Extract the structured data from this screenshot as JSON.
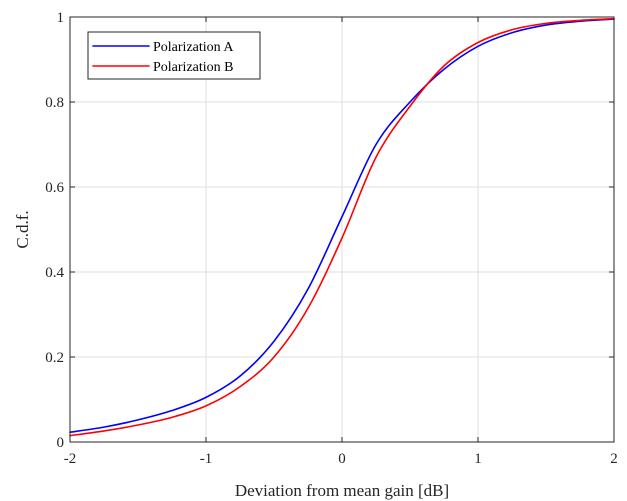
{
  "chart_data": {
    "type": "line",
    "xlabel": "Deviation from mean gain [dB]",
    "ylabel": "C.d.f.",
    "xlim": [
      -2,
      2
    ],
    "ylim": [
      0,
      1
    ],
    "xticks": [
      -2,
      -1,
      0,
      1,
      2
    ],
    "yticks": [
      0,
      0.2,
      0.4,
      0.6,
      0.8,
      1
    ],
    "xtick_labels": [
      "-2",
      "-1",
      "0",
      "1",
      "2"
    ],
    "ytick_labels": [
      "0",
      "0.2",
      "0.4",
      "0.6",
      "0.8",
      "1"
    ],
    "grid": true,
    "legend_position": "top-left",
    "series": [
      {
        "name": "Polarization A",
        "color": "#0000ff",
        "x": [
          -2,
          -1.75,
          -1.5,
          -1.25,
          -1,
          -0.75,
          -0.5,
          -0.25,
          0,
          0.25,
          0.5,
          0.75,
          1,
          1.25,
          1.5,
          1.75,
          2
        ],
        "y": [
          0.023,
          0.035,
          0.052,
          0.074,
          0.105,
          0.155,
          0.237,
          0.36,
          0.53,
          0.7,
          0.8,
          0.877,
          0.931,
          0.963,
          0.981,
          0.99,
          0.995
        ]
      },
      {
        "name": "Polarization B",
        "color": "#ff0000",
        "x": [
          -2,
          -1.75,
          -1.5,
          -1.25,
          -1,
          -0.75,
          -0.5,
          -0.25,
          0,
          0.25,
          0.5,
          0.75,
          1,
          1.25,
          1.5,
          1.75,
          2
        ],
        "y": [
          0.015,
          0.026,
          0.04,
          0.058,
          0.085,
          0.13,
          0.2,
          0.315,
          0.48,
          0.67,
          0.79,
          0.885,
          0.94,
          0.97,
          0.985,
          0.992,
          0.996
        ]
      }
    ]
  }
}
